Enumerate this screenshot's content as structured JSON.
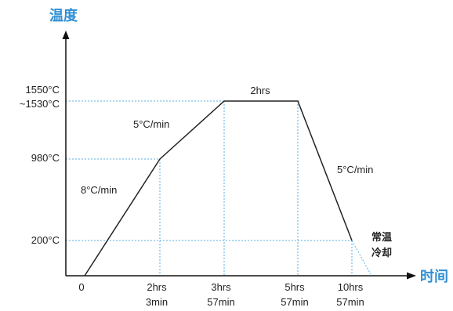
{
  "colors": {
    "accent": "#2f8fd6",
    "axis": "#111111",
    "profile_line": "#222222",
    "guide_line": "#5aaee3"
  },
  "axes": {
    "y_title": "温度",
    "x_title": "时间"
  },
  "y_labels": {
    "t1550": "1550°C",
    "t1530": "~1530°C",
    "t980": "980°C",
    "t200": "200°C"
  },
  "x_labels": {
    "x0": "0",
    "x1_line1": "2hrs",
    "x1_line2": "3min",
    "x2_line1": "3hrs",
    "x2_line2": "57min",
    "x3_line1": "5hrs",
    "x3_line2": "57min",
    "x4_line1": "10hrs",
    "x4_line2": "57min"
  },
  "annotations": {
    "rate_first": "8°C/min",
    "rate_second": "5°C/min",
    "hold": "2hrs",
    "rate_cool": "5°C/min",
    "cool_line1": "常温",
    "cool_line2": "冷却"
  }
}
